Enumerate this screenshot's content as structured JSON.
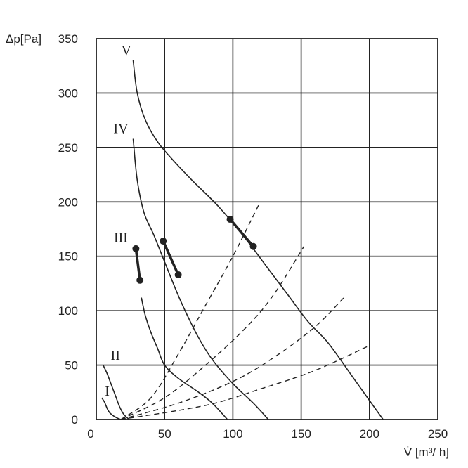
{
  "chart_data": {
    "type": "line",
    "xlabel": "V̇ [m³/ h]",
    "ylabel": "Δp[Pa]",
    "xlim": [
      0,
      250
    ],
    "ylim": [
      0,
      350
    ],
    "x_ticks": [
      "0",
      "50",
      "100",
      "150",
      "200",
      "250"
    ],
    "y_ticks": [
      "0",
      "50",
      "100",
      "150",
      "200",
      "250",
      "300",
      "350"
    ],
    "grid": true,
    "series": [
      {
        "name": "I",
        "style": "solid",
        "x": [
          4,
          6,
          8,
          10,
          13,
          16,
          18
        ],
        "y": [
          20,
          16,
          10,
          6,
          3,
          1,
          0
        ]
      },
      {
        "name": "II",
        "style": "solid",
        "x": [
          5,
          8,
          11,
          14,
          17,
          20,
          24
        ],
        "y": [
          50,
          42,
          32,
          22,
          12,
          5,
          0
        ]
      },
      {
        "name": "III",
        "style": "solid",
        "x": [
          33,
          36,
          40,
          45,
          50,
          60,
          75,
          85,
          96
        ],
        "y": [
          112,
          95,
          80,
          65,
          50,
          38,
          25,
          15,
          0
        ]
      },
      {
        "name": "IV",
        "style": "solid",
        "x": [
          27,
          30,
          35,
          42,
          50,
          58,
          65,
          75,
          85,
          100,
          115,
          126
        ],
        "y": [
          258,
          220,
          190,
          170,
          145,
          120,
          100,
          75,
          55,
          33,
          15,
          0
        ]
      },
      {
        "name": "V",
        "style": "solid",
        "x": [
          27,
          30,
          36,
          45,
          55,
          70,
          90,
          110,
          125,
          140,
          155,
          170,
          190,
          210
        ],
        "y": [
          330,
          300,
          275,
          255,
          240,
          220,
          195,
          165,
          140,
          115,
          90,
          70,
          35,
          0
        ]
      },
      {
        "name": "",
        "style": "dashed",
        "x": [
          18,
          40,
          60,
          80,
          100,
          120
        ],
        "y": [
          0,
          20,
          60,
          105,
          150,
          200
        ]
      },
      {
        "name": "",
        "style": "dashed",
        "x": [
          18,
          50,
          80,
          110,
          130,
          152
        ],
        "y": [
          0,
          20,
          50,
          85,
          115,
          159
        ]
      },
      {
        "name": "",
        "style": "dashed",
        "x": [
          18,
          60,
          100,
          130,
          160,
          182
        ],
        "y": [
          0,
          15,
          35,
          57,
          85,
          113
        ]
      },
      {
        "name": "",
        "style": "dashed",
        "x": [
          18,
          80,
          120,
          160,
          200
        ],
        "y": [
          0,
          13,
          28,
          45,
          68
        ]
      }
    ],
    "operating_segments": [
      {
        "curve": "III",
        "points": [
          [
            29,
            157
          ],
          [
            32,
            128
          ]
        ]
      },
      {
        "curve": "IV",
        "points": [
          [
            49,
            164
          ],
          [
            60,
            133
          ]
        ]
      },
      {
        "curve": "V",
        "points": [
          [
            98,
            184
          ],
          [
            115,
            159
          ]
        ]
      }
    ],
    "curve_labels": [
      {
        "text": "I",
        "x": 8,
        "y": 22
      },
      {
        "text": "II",
        "x": 14,
        "y": 55
      },
      {
        "text": "III",
        "x": 18,
        "y": 163
      },
      {
        "text": "IV",
        "x": 18,
        "y": 263
      },
      {
        "text": "V",
        "x": 22,
        "y": 335
      }
    ]
  }
}
